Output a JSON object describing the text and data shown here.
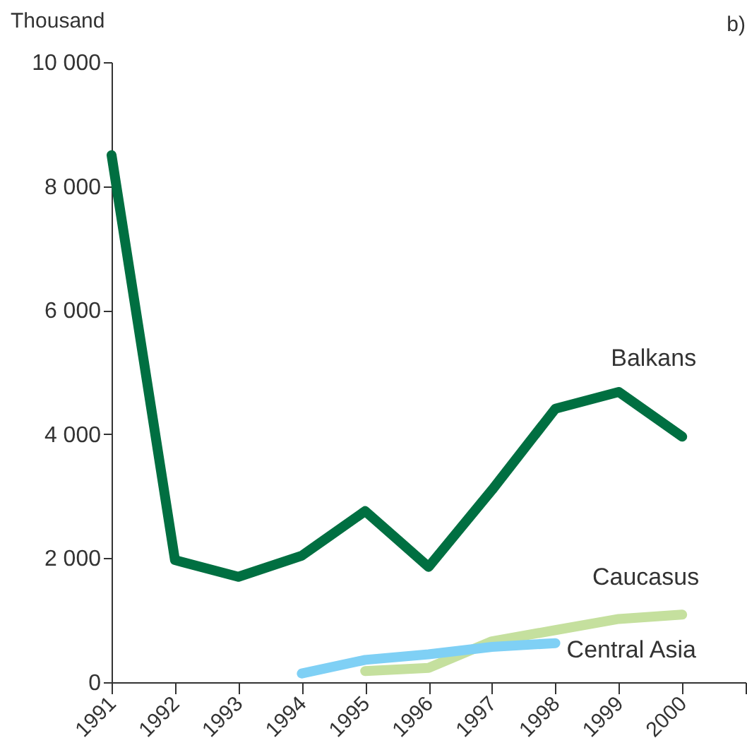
{
  "chart_data": {
    "type": "line",
    "ylabel": "Thousand",
    "annotations": [
      "b)"
    ],
    "x": [
      1991,
      1992,
      1993,
      1994,
      1995,
      1996,
      1997,
      1998,
      1999,
      2000
    ],
    "xlim": [
      1991,
      2001
    ],
    "xticks": [
      1991,
      1992,
      1993,
      1994,
      1995,
      1996,
      1997,
      1998,
      1999,
      2000,
      {
        "value": 2001,
        "label": null
      }
    ],
    "ylim": [
      0,
      10000
    ],
    "yticks": [
      0,
      {
        "value": 2000,
        "label": "2 000"
      },
      {
        "value": 4000,
        "label": "4 000"
      },
      {
        "value": 6000,
        "label": "6 000"
      },
      {
        "value": 8000,
        "label": "8 000"
      },
      {
        "value": 10000,
        "label": "10 000"
      }
    ],
    "grid": false,
    "marker": "none",
    "line_style": "solid",
    "series": [
      {
        "name": "Balkans",
        "color": "#006f41",
        "values": [
          8500,
          1970,
          1700,
          2040,
          2760,
          1860,
          3100,
          4410,
          4680,
          3960
        ]
      },
      {
        "name": "Caucasus",
        "color": "#c5e09e",
        "x": [
          1995,
          1996,
          1997,
          1998,
          1999,
          2000
        ],
        "values": [
          180,
          230,
          660,
          840,
          1020,
          1090
        ]
      },
      {
        "name": "Central Asia",
        "color": "#7fd0f5",
        "x": [
          1994,
          1995,
          1996,
          1997,
          1998
        ],
        "values": [
          140,
          360,
          450,
          570,
          630
        ]
      }
    ]
  }
}
